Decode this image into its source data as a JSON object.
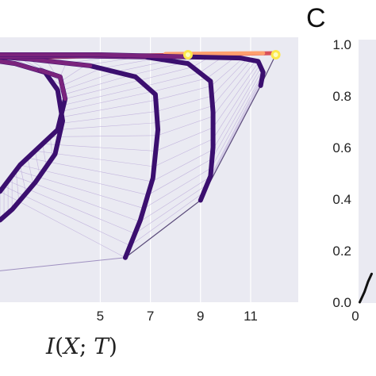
{
  "chart_data": [
    {
      "type": "line",
      "panel": "",
      "xlabel": "I(X; T)",
      "xlabel_parts": {
        "a": "I",
        "b": "(",
        "c": "X",
        "d": "; ",
        "e": "T",
        "f": ")"
      },
      "xticks": [
        "5",
        "7",
        "9",
        "11"
      ],
      "xtick_values": [
        5,
        7,
        9,
        11
      ],
      "xlim": [
        1.0,
        12.9
      ],
      "ylim": [
        0.0,
        1.0
      ],
      "grid": true,
      "colors": {
        "background": "#eaeaf2",
        "trajectory_dark": "#3b0f6f",
        "trajectory_mid": "#8c2981",
        "end_hot": "#fe9f6d",
        "end_point": "#fcfdbf",
        "mesh": "#b9a7d8",
        "spine_top": "#d8505a"
      },
      "series": [
        {
          "name": "",
          "x": [
            1.0,
            1.6,
            2.8,
            3.3,
            3.5,
            3.2,
            2.4,
            1.5,
            1.0
          ],
          "y": [
            0.97,
            0.96,
            0.92,
            0.84,
            0.7,
            0.55,
            0.42,
            0.3,
            0.25
          ]
        },
        {
          "name": "",
          "x": [
            2.6,
            3.4,
            3.6,
            3.3,
            1.8,
            1.0
          ],
          "y": [
            0.93,
            0.9,
            0.8,
            0.66,
            0.5,
            0.38
          ]
        },
        {
          "name": "",
          "x": [
            1.0,
            2.2,
            4.6,
            6.4,
            7.2,
            7.3,
            7.1,
            6.6,
            6.0
          ],
          "y": [
            0.99,
            0.98,
            0.95,
            0.9,
            0.82,
            0.66,
            0.44,
            0.25,
            0.08
          ]
        },
        {
          "name": "",
          "x": [
            1.0,
            4.0,
            6.8,
            8.5,
            9.4,
            9.5,
            9.5,
            9.4,
            9.0
          ],
          "y": [
            0.99,
            0.995,
            0.99,
            0.96,
            0.88,
            0.74,
            0.58,
            0.45,
            0.34
          ]
        },
        {
          "name": "",
          "x": [
            1.0,
            5.0,
            8.5,
            10.6,
            11.3,
            11.5,
            11.4
          ],
          "y": [
            1.0,
            1.0,
            0.99,
            0.985,
            0.97,
            0.92,
            0.86
          ]
        }
      ],
      "endpoints": [
        {
          "x": 8.5,
          "y": 1.0
        },
        {
          "x": 12.0,
          "y": 1.0
        }
      ],
      "boundary": {
        "x": [
          6.0,
          9.0,
          11.4,
          12.0
        ],
        "y": [
          0.08,
          0.34,
          0.86,
          1.0
        ]
      }
    },
    {
      "type": "line",
      "panel": "C",
      "yticks": [
        "0.0",
        "0.2",
        "0.4",
        "0.6",
        "0.8",
        "1.0"
      ],
      "ytick_values": [
        0.0,
        0.2,
        0.4,
        0.6,
        0.8,
        1.0
      ],
      "xticks": [
        "0"
      ],
      "xtick_values": [
        0
      ],
      "ylim": [
        0.0,
        1.0
      ],
      "series": [
        {
          "name": "",
          "x": [
            0.05,
            0.25,
            0.4,
            0.55
          ],
          "y": [
            0.0,
            0.04,
            0.08,
            0.11
          ]
        }
      ],
      "colors": {
        "line": "#111111",
        "background": "#eaeaf2"
      }
    }
  ]
}
